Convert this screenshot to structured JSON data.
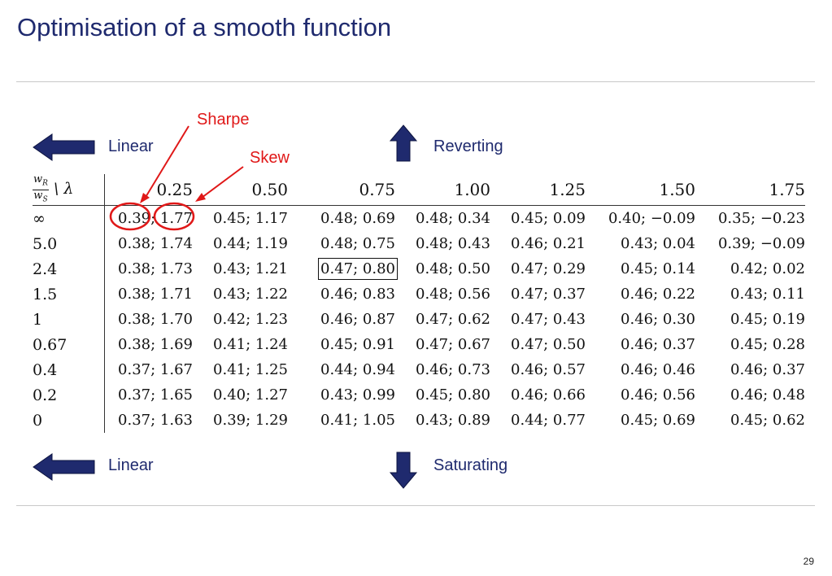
{
  "slide": {
    "title": "Optimisation of a smooth function",
    "page_number": "29"
  },
  "annotations": {
    "sharpe": "Sharpe",
    "skew": "Skew"
  },
  "labels": {
    "top_left": "Linear",
    "top_right": "Reverting",
    "bottom_left": "Linear",
    "bottom_right": "Saturating"
  },
  "table": {
    "corner": {
      "numerator": "w",
      "numerator_sub": "R",
      "denominator": "w",
      "denominator_sub": "S",
      "suffix": "\\ λ"
    },
    "columns": [
      "0.25",
      "0.50",
      "0.75",
      "1.00",
      "1.25",
      "1.50",
      "1.75"
    ],
    "rows": [
      {
        "label": "∞",
        "cells": [
          "0.39; 1.77",
          "0.45; 1.17",
          "0.48; 0.69",
          "0.48; 0.34",
          "0.45; 0.09",
          "0.40; −0.09",
          "0.35; −0.23"
        ]
      },
      {
        "label": "5.0",
        "cells": [
          "0.38; 1.74",
          "0.44; 1.19",
          "0.48; 0.75",
          "0.48; 0.43",
          "0.46; 0.21",
          "0.43; 0.04",
          "0.39; −0.09"
        ]
      },
      {
        "label": "2.4",
        "cells": [
          "0.38; 1.73",
          "0.43; 1.21",
          "0.47; 0.80",
          "0.48; 0.50",
          "0.47; 0.29",
          "0.45; 0.14",
          "0.42; 0.02"
        ]
      },
      {
        "label": "1.5",
        "cells": [
          "0.38; 1.71",
          "0.43; 1.22",
          "0.46; 0.83",
          "0.48; 0.56",
          "0.47; 0.37",
          "0.46; 0.22",
          "0.43; 0.11"
        ]
      },
      {
        "label": "1",
        "cells": [
          "0.38; 1.70",
          "0.42; 1.23",
          "0.46; 0.87",
          "0.47; 0.62",
          "0.47; 0.43",
          "0.46; 0.30",
          "0.45; 0.19"
        ]
      },
      {
        "label": "0.67",
        "cells": [
          "0.38; 1.69",
          "0.41; 1.24",
          "0.45; 0.91",
          "0.47; 0.67",
          "0.47; 0.50",
          "0.46; 0.37",
          "0.45; 0.28"
        ]
      },
      {
        "label": "0.4",
        "cells": [
          "0.37; 1.67",
          "0.41; 1.25",
          "0.44; 0.94",
          "0.46; 0.73",
          "0.46; 0.57",
          "0.46; 0.46",
          "0.46; 0.37"
        ]
      },
      {
        "label": "0.2",
        "cells": [
          "0.37; 1.65",
          "0.40; 1.27",
          "0.43; 0.99",
          "0.45; 0.80",
          "0.46; 0.66",
          "0.46; 0.56",
          "0.46; 0.48"
        ]
      },
      {
        "label": "0",
        "cells": [
          "0.37; 1.63",
          "0.39; 1.29",
          "0.41; 1.05",
          "0.43; 0.89",
          "0.44; 0.77",
          "0.45; 0.69",
          "0.45; 0.62"
        ]
      }
    ]
  },
  "colors": {
    "title": "#1f2a6e",
    "arrow": "#1f2a6e",
    "annotation": "#e01818"
  }
}
